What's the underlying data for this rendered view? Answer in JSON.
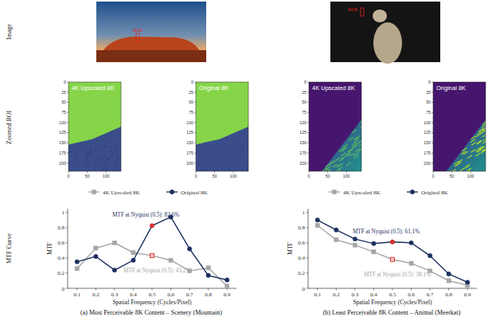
{
  "row_labels": [
    "Image",
    "Zoomed ROI",
    "MTF Curve"
  ],
  "panels": [
    {
      "caption": "(a) Most Perceivable 8K Content – Scenery (Mountain)",
      "image": {
        "roi_label": "ROI"
      },
      "zoomed_roi": [
        {
          "title": "4K Upscaled 8K",
          "xlim": [
            0,
            140
          ],
          "ylim": [
            220,
            0
          ],
          "xticks": [
            0,
            50,
            100
          ],
          "yticks": [
            0,
            25,
            50,
            75,
            100,
            125,
            150,
            175,
            200
          ]
        },
        {
          "title": "Original 8K",
          "xlim": [
            0,
            140
          ],
          "ylim": [
            220,
            0
          ],
          "xticks": [
            0,
            50,
            100
          ],
          "yticks": [
            0,
            25,
            50,
            75,
            100,
            125,
            150,
            175,
            200
          ]
        }
      ]
    },
    {
      "caption": "(b) Least Perceivable 8K Content – Animal (Meerkat)",
      "image": {
        "roi_label": "ROI"
      },
      "zoomed_roi": [
        {
          "title": "4K Upscaled 8K",
          "xlim": [
            0,
            140
          ],
          "ylim": [
            220,
            0
          ],
          "xticks": [
            0,
            50,
            100
          ],
          "yticks": [
            0,
            25,
            50,
            75,
            100,
            125,
            150,
            175,
            200
          ]
        },
        {
          "title": "Original 8K",
          "xlim": [
            0,
            140
          ],
          "ylim": [
            220,
            0
          ],
          "xticks": [
            0,
            50,
            100
          ],
          "yticks": [
            0,
            25,
            50,
            75,
            100,
            125,
            150,
            175,
            200
          ]
        }
      ]
    }
  ],
  "chart_data": [
    {
      "type": "line",
      "x": [
        0.1,
        0.2,
        0.3,
        0.4,
        0.5,
        0.6,
        0.7,
        0.8,
        0.9
      ],
      "series": [
        {
          "name": "4K Upscaled 8K",
          "color": "#a6a6a6",
          "marker": "square",
          "values": [
            0.26,
            0.53,
            0.6,
            0.47,
            0.432,
            0.37,
            0.23,
            0.27,
            0.03
          ]
        },
        {
          "name": "Original 8K",
          "color": "#1b2f5e",
          "marker": "circle",
          "values": [
            0.35,
            0.42,
            0.24,
            0.37,
            0.826,
            0.94,
            0.52,
            0.17,
            0.11
          ]
        }
      ],
      "xlim": [
        0.05,
        0.95
      ],
      "ylim": [
        0,
        1.05
      ],
      "xticks": [
        0.1,
        0.2,
        0.3,
        0.4,
        0.5,
        0.6,
        0.7,
        0.8,
        0.9
      ],
      "yticks": [
        0,
        0.2,
        0.4,
        0.6,
        0.8,
        1
      ],
      "x_label": "Spatial Frequency (Cycles/Pixel)",
      "y_label": "MTF",
      "legend": "top",
      "annotations": [
        {
          "text": "MTF at Nyquist (0.5): 82.6%",
          "x": 0.5,
          "y": 0.826,
          "color": "#1b2f5e"
        },
        {
          "text": "MTF at Nyquist (0.5): 43.2%",
          "x": 0.5,
          "y": 0.432,
          "color": "#a6a6a6"
        }
      ]
    },
    {
      "type": "line",
      "x": [
        0.1,
        0.2,
        0.3,
        0.4,
        0.5,
        0.6,
        0.7,
        0.8,
        0.9
      ],
      "series": [
        {
          "name": "4K Upscaled 8K",
          "color": "#a6a6a6",
          "marker": "square",
          "values": [
            0.83,
            0.64,
            0.57,
            0.48,
            0.381,
            0.33,
            0.23,
            0.1,
            0.04
          ]
        },
        {
          "name": "Original 8K",
          "color": "#1b2f5e",
          "marker": "circle",
          "values": [
            0.9,
            0.77,
            0.65,
            0.59,
            0.611,
            0.6,
            0.43,
            0.19,
            0.08
          ]
        }
      ],
      "xlim": [
        0.05,
        0.95
      ],
      "ylim": [
        0,
        1.05
      ],
      "xticks": [
        0.1,
        0.2,
        0.3,
        0.4,
        0.5,
        0.6,
        0.7,
        0.8,
        0.9
      ],
      "yticks": [
        0,
        0.2,
        0.4,
        0.6,
        0.8,
        1
      ],
      "x_label": "Spatial Frequency (Cycles/Pixel)",
      "y_label": "MTF",
      "legend": "top",
      "annotations": [
        {
          "text": "MTF at Nyquist (0.5): 61.1%",
          "x": 0.5,
          "y": 0.611,
          "color": "#1b2f5e"
        },
        {
          "text": "MTF at Nyquist (0.5): 38.1%",
          "x": 0.5,
          "y": 0.381,
          "color": "#a6a6a6"
        }
      ]
    }
  ]
}
